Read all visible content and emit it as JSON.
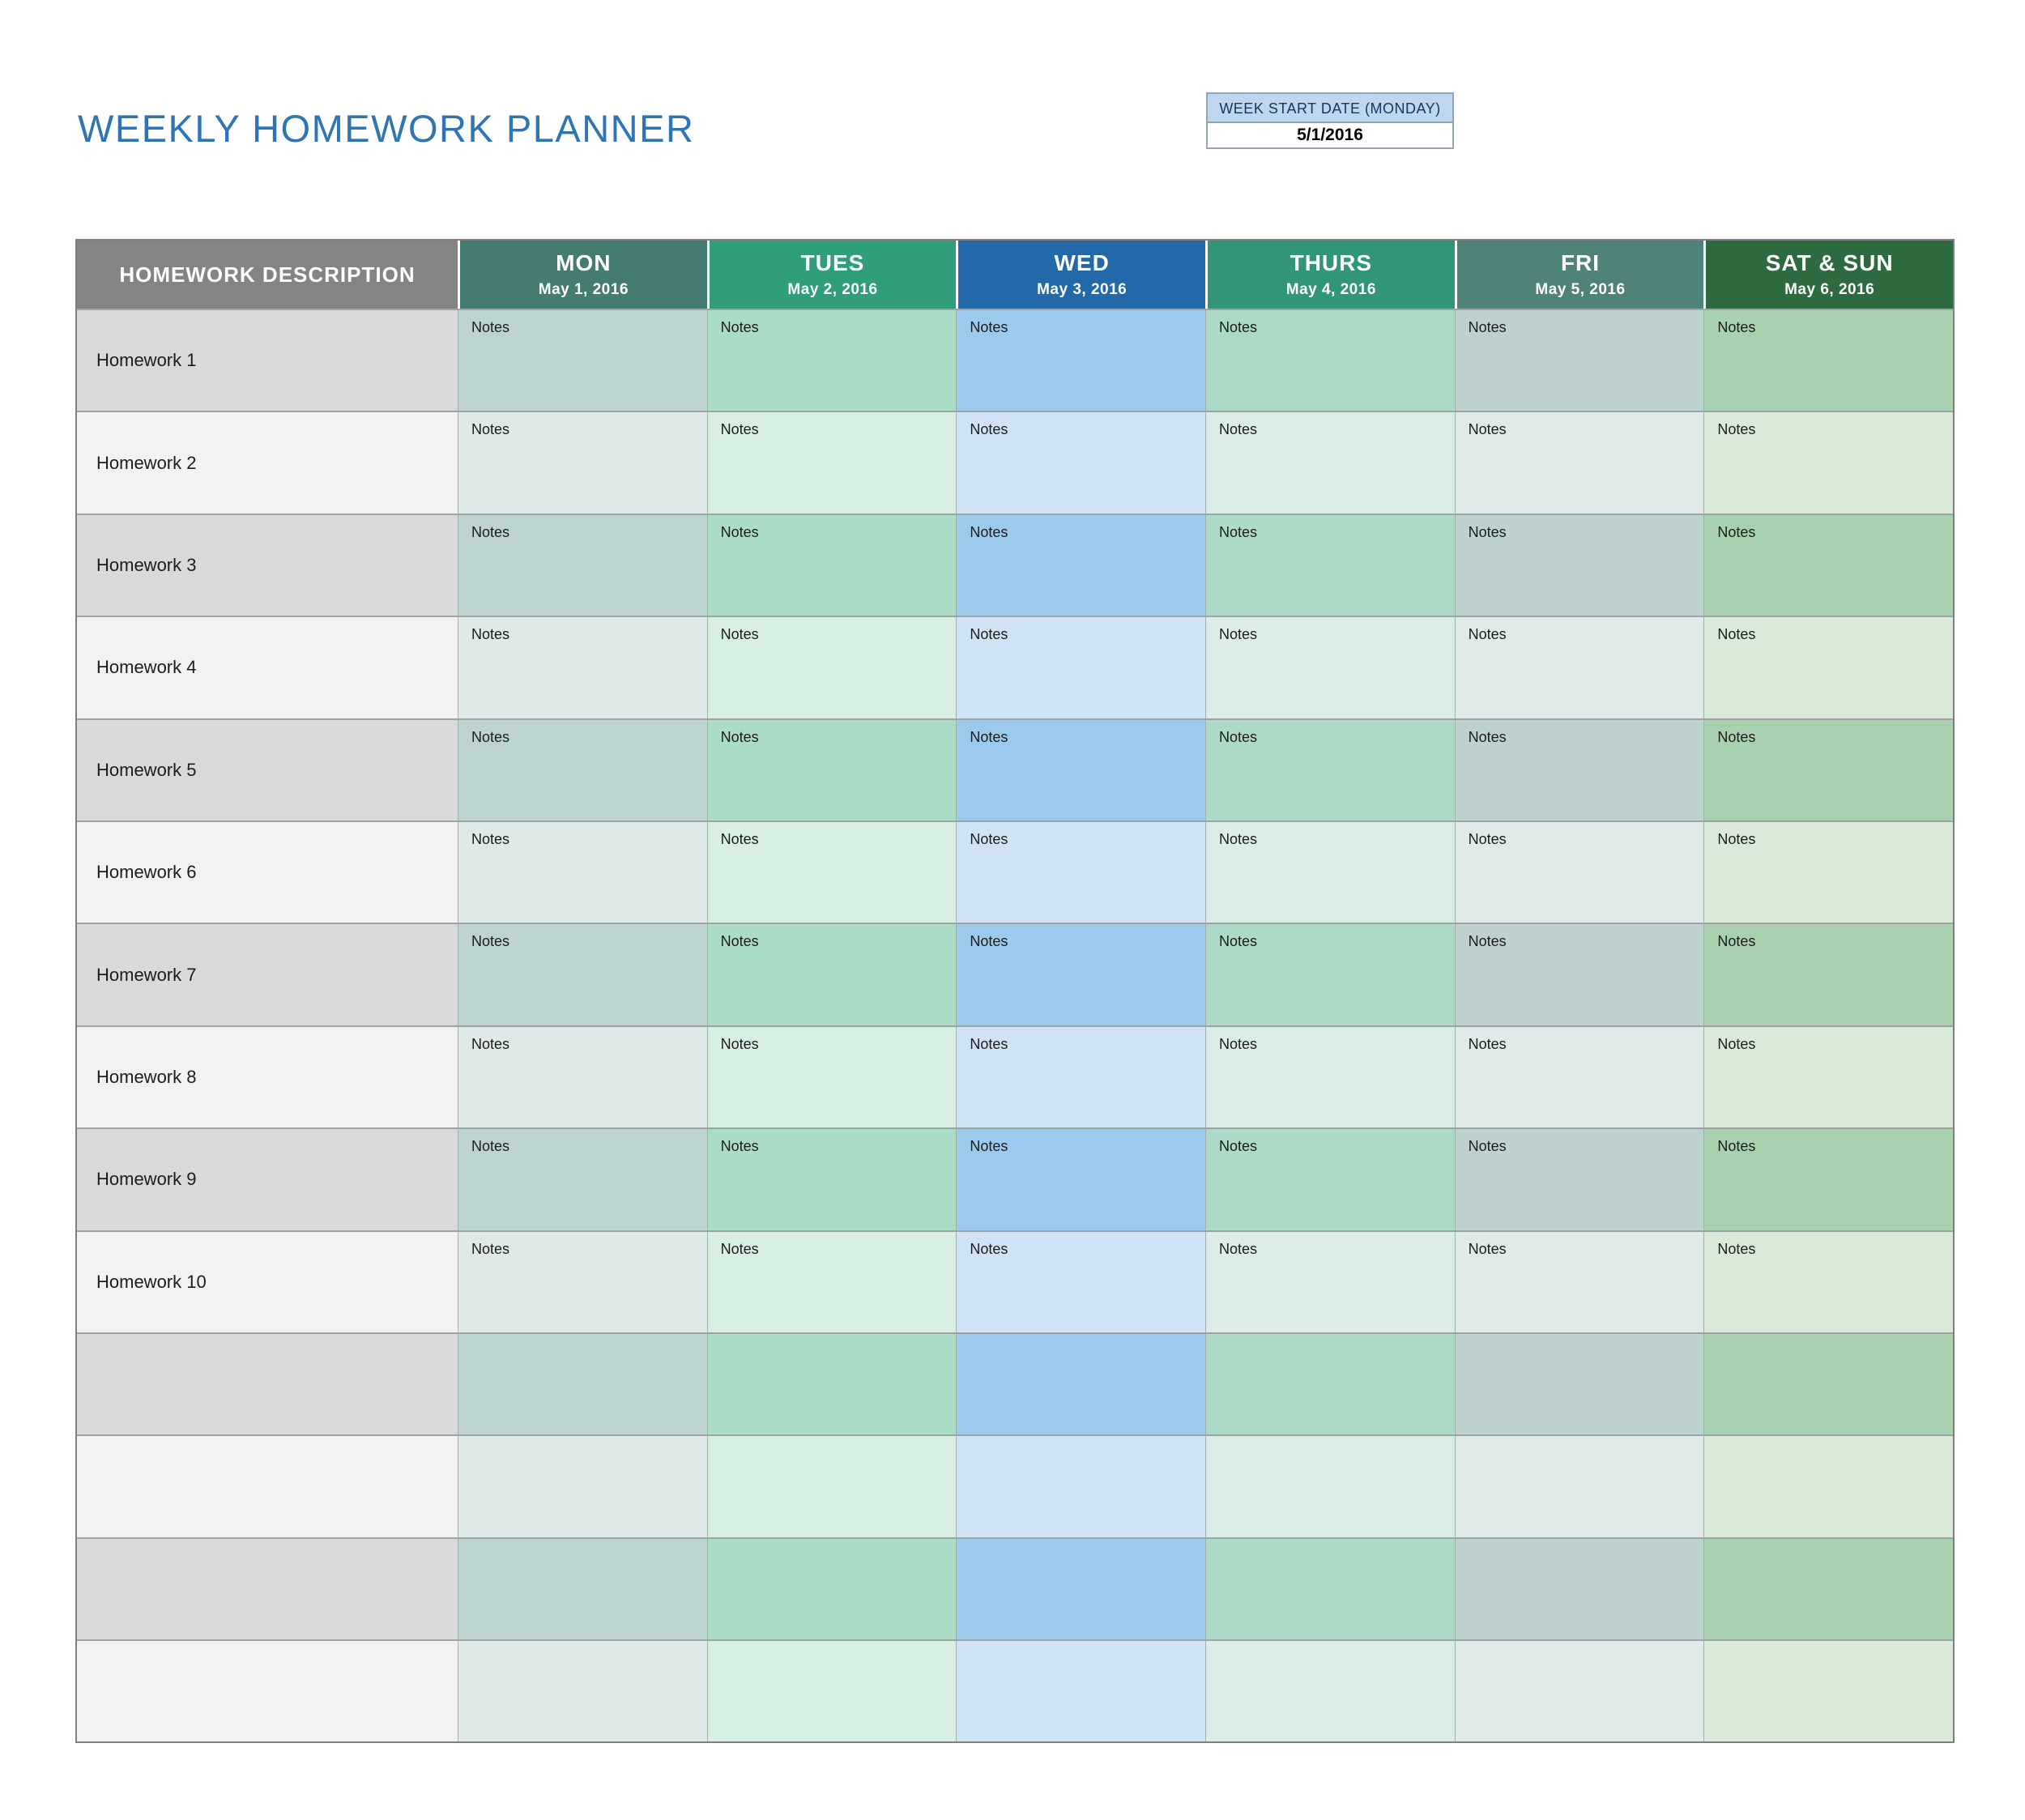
{
  "page": {
    "title": "WEEKLY HOMEWORK PLANNER"
  },
  "colors": {
    "title_text": "#2E75B6",
    "week_label_bg": "#BDD7EE",
    "week_label_text": "#17365D",
    "description_header_bg": "#848484",
    "description_cell_dark": "#D9D9D9",
    "description_cell_light": "#F2F2F2"
  },
  "week_start": {
    "label": "WEEK START DATE (MONDAY)",
    "value": "5/1/2016"
  },
  "table": {
    "description_header": "HOMEWORK DESCRIPTION",
    "notes_label": "Notes",
    "columns": [
      {
        "day": "MON",
        "date": "May 1, 2016",
        "header_bg": "#447C72",
        "cell_dark": "#BCD3D0",
        "cell_light": "#DFE9E8"
      },
      {
        "day": "TUES",
        "date": "May 2, 2016",
        "header_bg": "#2F9E79",
        "cell_dark": "#ABDCC5",
        "cell_light": "#D8EFE3"
      },
      {
        "day": "WED",
        "date": "May 3, 2016",
        "header_bg": "#2368A8",
        "cell_dark": "#9CCAED",
        "cell_light": "#D0E3F4"
      },
      {
        "day": "THURS",
        "date": "May 4, 2016",
        "header_bg": "#31957A",
        "cell_dark": "#ACDAC6",
        "cell_light": "#DAEEE5"
      },
      {
        "day": "FRI",
        "date": "May 5, 2016",
        "header_bg": "#4F837A",
        "cell_dark": "#BDD2CE",
        "cell_light": "#E0EAE8"
      },
      {
        "day": "SAT & SUN",
        "date": "May 6, 2016",
        "header_bg": "#2D6A3F",
        "cell_dark": "#A9D1B0",
        "cell_light": "#DAEAD9"
      }
    ],
    "rows": [
      {
        "label": "Homework 1",
        "notes": true
      },
      {
        "label": "Homework 2",
        "notes": true
      },
      {
        "label": "Homework 3",
        "notes": true
      },
      {
        "label": "Homework 4",
        "notes": true
      },
      {
        "label": "Homework 5",
        "notes": true
      },
      {
        "label": "Homework 6",
        "notes": true
      },
      {
        "label": "Homework 7",
        "notes": true
      },
      {
        "label": "Homework 8",
        "notes": true
      },
      {
        "label": "Homework 9",
        "notes": true
      },
      {
        "label": "Homework 10",
        "notes": true
      },
      {
        "label": "",
        "notes": false
      },
      {
        "label": "",
        "notes": false
      },
      {
        "label": "",
        "notes": false
      },
      {
        "label": "",
        "notes": false
      }
    ]
  }
}
